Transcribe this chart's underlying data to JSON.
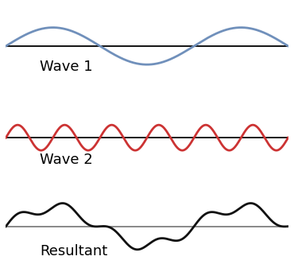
{
  "wave1_amplitude": 1.0,
  "wave1_cycles": 1.5,
  "wave2_amplitude": 0.28,
  "wave2_cycles": 6.0,
  "wave1_color": "#7090bb",
  "wave2_color": "#cc3333",
  "resultant_color": "#111111",
  "baseline_color": "#111111",
  "resultant_baseline_color": "#888888",
  "wave1_label": "Wave 1",
  "wave2_label": "Wave 2",
  "resultant_label": "Resultant",
  "label_fontsize": 13,
  "linewidth": 2.0,
  "baseline_linewidth": 1.4,
  "background_color": "#ffffff",
  "wave1_ylim": [
    -1.6,
    2.2
  ],
  "wave2_ylim": [
    -0.65,
    0.9
  ],
  "resultant_ylim": [
    -1.7,
    2.0
  ]
}
